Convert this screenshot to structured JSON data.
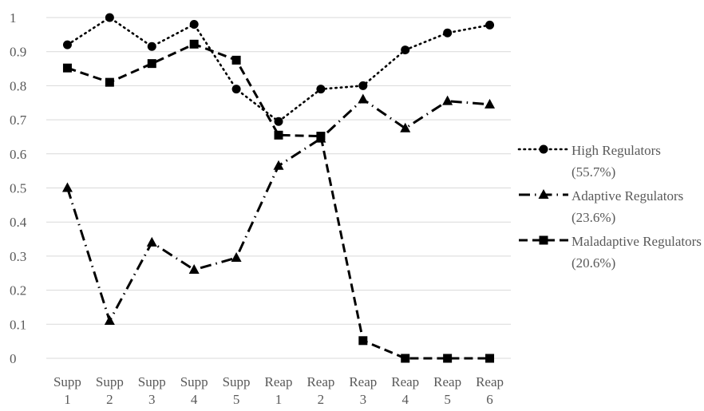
{
  "chart_data": {
    "type": "line",
    "categories": [
      "Supp 1",
      "Supp 2",
      "Supp 3",
      "Supp 4",
      "Supp 5",
      "Reap 1",
      "Reap 2",
      "Reap 3",
      "Reap 4",
      "Reap 5",
      "Reap 6"
    ],
    "category_lines": [
      [
        "Supp",
        "1"
      ],
      [
        "Supp",
        "2"
      ],
      [
        "Supp",
        "3"
      ],
      [
        "Supp",
        "4"
      ],
      [
        "Supp",
        "5"
      ],
      [
        "Reap",
        "1"
      ],
      [
        "Reap",
        "2"
      ],
      [
        "Reap",
        "3"
      ],
      [
        "Reap",
        "4"
      ],
      [
        "Reap",
        "5"
      ],
      [
        "Reap",
        "6"
      ]
    ],
    "ylim": [
      0,
      1
    ],
    "yticks": [
      "0",
      "0.1",
      "0.2",
      "0.3",
      "0.4",
      "0.5",
      "0.6",
      "0.7",
      "0.8",
      "0.9",
      "1"
    ],
    "grid": true,
    "legend_position": "right",
    "color": "#000000",
    "series": [
      {
        "name": "High Regulators (55.7%)",
        "marker": "circle",
        "line_style": "dotted",
        "values": [
          0.92,
          1.0,
          0.915,
          0.98,
          0.79,
          0.695,
          0.79,
          0.8,
          0.905,
          0.955,
          0.978
        ]
      },
      {
        "name": "Adaptive Regulators (23.6%)",
        "marker": "triangle",
        "line_style": "dash-dot",
        "values": [
          0.5,
          0.11,
          0.34,
          0.26,
          0.295,
          0.565,
          0.645,
          0.76,
          0.675,
          0.755,
          0.745
        ]
      },
      {
        "name": "Maladaptive Regulators (20.6%)",
        "marker": "square",
        "line_style": "dashed",
        "values": [
          0.852,
          0.81,
          0.865,
          0.922,
          0.875,
          0.655,
          0.652,
          0.052,
          0.0,
          0.0,
          0.0
        ]
      }
    ]
  },
  "legend": {
    "items": [
      {
        "label": "High Regulators (55.7%)"
      },
      {
        "label": "Adaptive Regulators (23.6%)"
      },
      {
        "label": "Maladaptive Regulators (20.6%)"
      }
    ]
  }
}
